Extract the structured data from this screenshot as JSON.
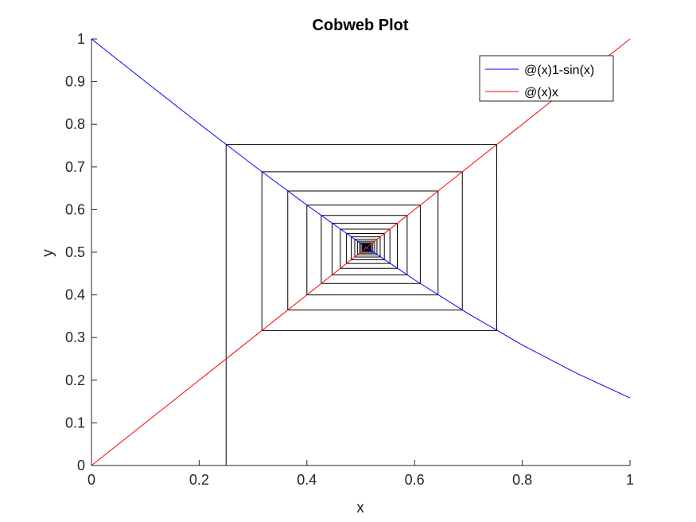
{
  "chart_data": {
    "type": "line",
    "title": "Cobweb Plot",
    "xlabel": "x",
    "ylabel": "y",
    "xlim": [
      0,
      1
    ],
    "ylim": [
      0,
      1
    ],
    "xticks": [
      0,
      0.2,
      0.4,
      0.6,
      0.8,
      1
    ],
    "yticks": [
      0,
      0.1,
      0.2,
      0.3,
      0.4,
      0.5,
      0.6,
      0.7,
      0.8,
      0.9,
      1
    ],
    "xtick_labels": [
      "0",
      "0.2",
      "0.4",
      "0.6",
      "0.8",
      "1"
    ],
    "ytick_labels": [
      "0",
      "0.1",
      "0.2",
      "0.3",
      "0.4",
      "0.5",
      "0.6",
      "0.7",
      "0.8",
      "0.9",
      "1"
    ],
    "grid": false,
    "legend_position": "top-right",
    "series": [
      {
        "name": "@(x)1-sin(x)",
        "color": "#0000ff",
        "x": [
          0,
          0.1,
          0.2,
          0.3,
          0.4,
          0.5,
          0.6,
          0.7,
          0.8,
          0.9,
          1.0
        ],
        "y": [
          1.0,
          0.9002,
          0.8013,
          0.7045,
          0.6106,
          0.5206,
          0.4354,
          0.3558,
          0.2826,
          0.2167,
          0.1585
        ]
      },
      {
        "name": "@(x)x",
        "color": "#ff0000",
        "x": [
          0,
          1
        ],
        "y": [
          0,
          1
        ]
      }
    ],
    "cobweb": {
      "color": "#000000",
      "x0": 0.25,
      "iterates": [
        0.25,
        0.7526,
        0.3165,
        0.6887,
        0.3645,
        0.6436,
        0.4,
        0.6106,
        0.4267,
        0.5862,
        0.4468,
        0.568,
        0.4621,
        0.5542,
        0.4736,
        0.5439,
        0.4823,
        0.5361,
        0.4889,
        0.5302,
        0.4939,
        0.5258,
        0.4977,
        0.5225,
        0.5005,
        0.52,
        0.5027,
        0.5181,
        0.5043,
        0.5166,
        0.5055,
        0.5156,
        0.5064,
        0.5148,
        0.5071,
        0.5142,
        0.5076,
        0.5137,
        0.508,
        0.5134
      ]
    }
  }
}
